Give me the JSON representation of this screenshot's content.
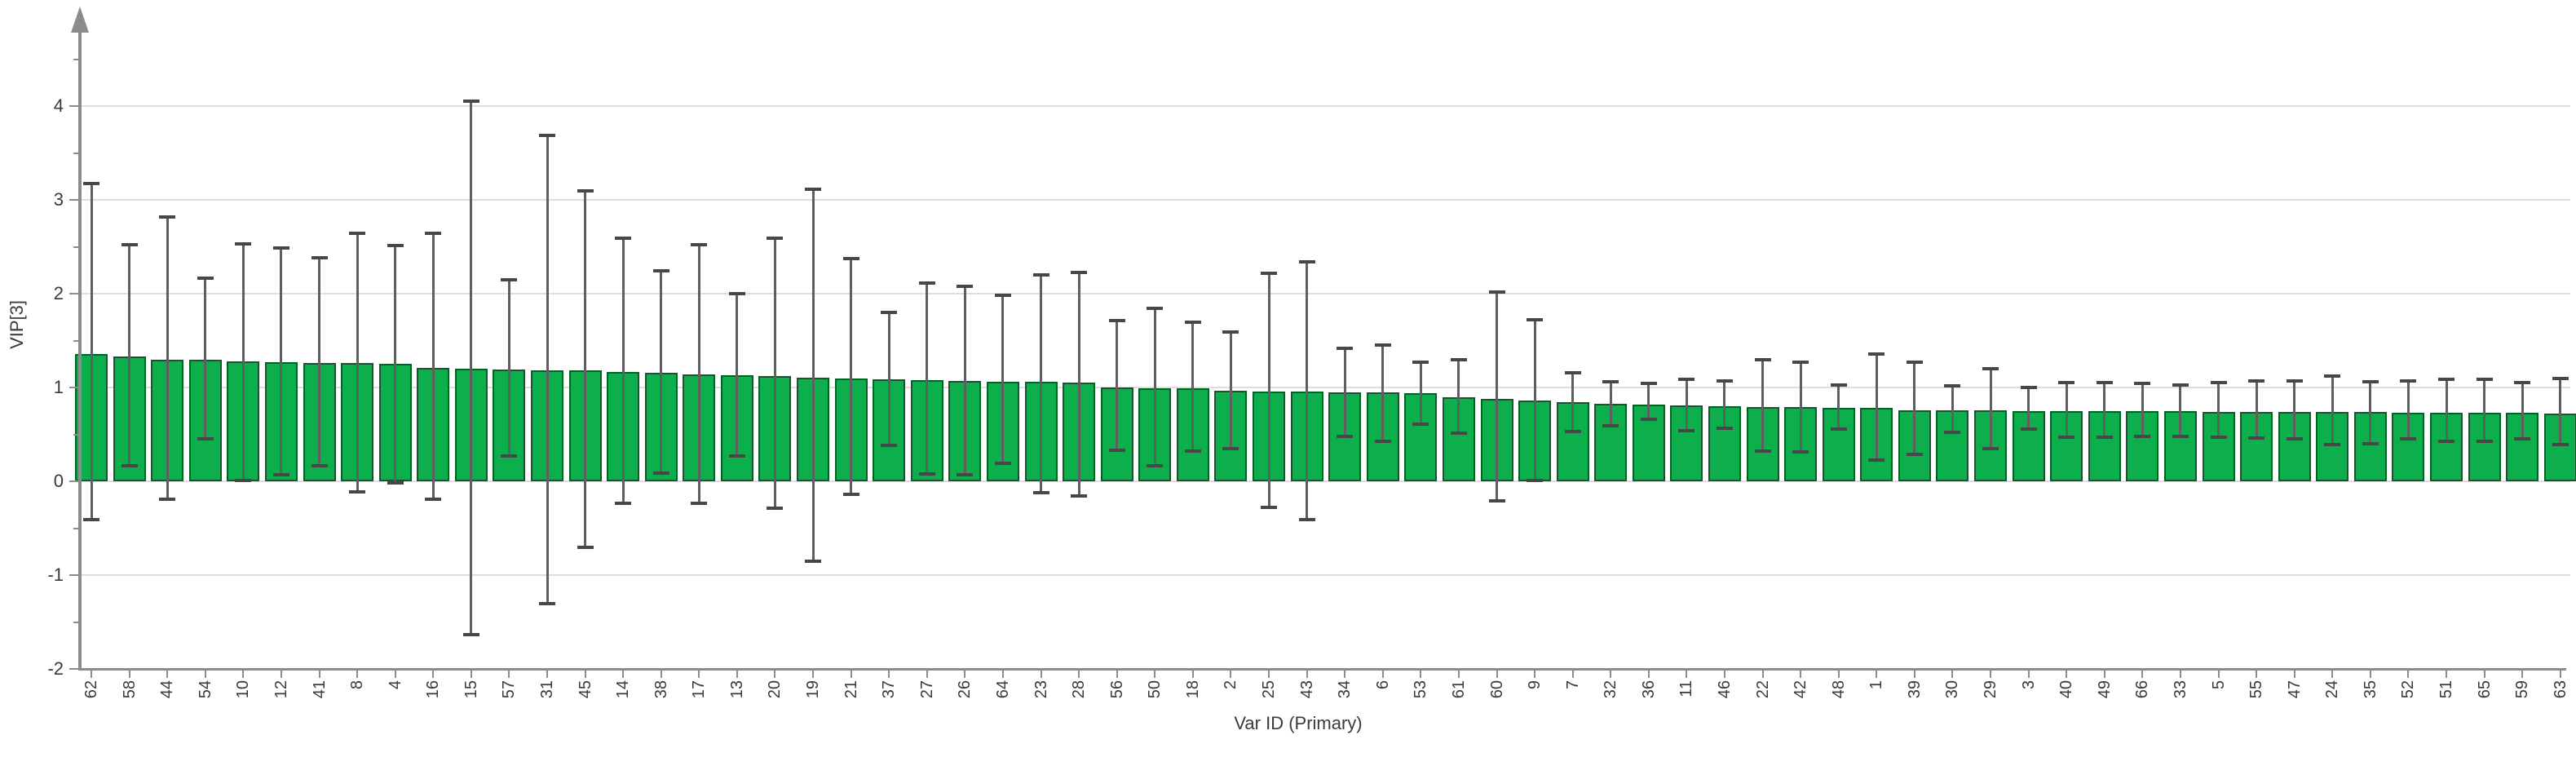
{
  "chart_data": {
    "type": "bar",
    "title": "",
    "xlabel": "Var ID (Primary)",
    "ylabel": "VIP[3]",
    "ylim": [
      -2,
      4.6
    ],
    "yticks": [
      -2,
      -1,
      0,
      1,
      2,
      3,
      4
    ],
    "yticks_minor": [
      -1.5,
      -0.5,
      0.5,
      1.5,
      2.5,
      3.5,
      4.5
    ],
    "grid": true,
    "legend_position": "none",
    "categories": [
      "62",
      "58",
      "44",
      "54",
      "10",
      "12",
      "41",
      "8",
      "4",
      "16",
      "15",
      "57",
      "31",
      "45",
      "14",
      "38",
      "17",
      "13",
      "20",
      "19",
      "21",
      "37",
      "27",
      "26",
      "64",
      "23",
      "28",
      "56",
      "50",
      "18",
      "2",
      "25",
      "43",
      "34",
      "6",
      "53",
      "61",
      "60",
      "9",
      "7",
      "32",
      "36",
      "11",
      "46",
      "22",
      "42",
      "48",
      "1",
      "39",
      "30",
      "29",
      "3",
      "40",
      "49",
      "66",
      "33",
      "5",
      "55",
      "47",
      "24",
      "35",
      "52",
      "51",
      "65",
      "59",
      "63"
    ],
    "series": [
      {
        "name": "VIP[3]",
        "values": [
          1.36,
          1.33,
          1.3,
          1.295,
          1.28,
          1.27,
          1.265,
          1.26,
          1.25,
          1.21,
          1.2,
          1.19,
          1.185,
          1.18,
          1.17,
          1.16,
          1.14,
          1.13,
          1.12,
          1.105,
          1.1,
          1.085,
          1.08,
          1.07,
          1.065,
          1.06,
          1.055,
          1.0,
          0.995,
          0.99,
          0.965,
          0.96,
          0.955,
          0.95,
          0.945,
          0.94,
          0.9,
          0.88,
          0.86,
          0.845,
          0.83,
          0.82,
          0.805,
          0.8,
          0.795,
          0.79,
          0.785,
          0.78,
          0.76,
          0.755,
          0.755,
          0.75,
          0.75,
          0.748,
          0.746,
          0.744,
          0.742,
          0.74,
          0.74,
          0.738,
          0.736,
          0.734,
          0.732,
          0.73,
          0.728,
          0.726
        ],
        "error_low": [
          -0.41,
          0.17,
          -0.19,
          0.45,
          0.01,
          0.07,
          0.17,
          -0.11,
          -0.02,
          -0.19,
          -1.63,
          0.27,
          -1.3,
          -0.7,
          -0.23,
          0.09,
          -0.23,
          0.27,
          -0.29,
          -0.85,
          -0.14,
          0.38,
          0.08,
          0.07,
          0.19,
          -0.12,
          -0.16,
          0.33,
          0.17,
          0.32,
          0.35,
          -0.28,
          -0.41,
          0.48,
          0.43,
          0.61,
          0.51,
          -0.21,
          0.01,
          0.53,
          0.59,
          0.66,
          0.54,
          0.57,
          0.32,
          0.31,
          0.56,
          0.23,
          0.29,
          0.52,
          0.35,
          0.56,
          0.47,
          0.47,
          0.48,
          0.48,
          0.47,
          0.465,
          0.45,
          0.39,
          0.4,
          0.45,
          0.43,
          0.43,
          0.455,
          0.39
        ],
        "error_high": [
          3.17,
          2.52,
          2.82,
          2.17,
          2.53,
          2.49,
          2.38,
          2.64,
          2.51,
          2.64,
          4.05,
          2.15,
          3.69,
          3.1,
          2.59,
          2.24,
          2.52,
          2.0,
          2.59,
          3.11,
          2.37,
          1.8,
          2.11,
          2.08,
          1.98,
          2.2,
          2.23,
          1.71,
          1.84,
          1.7,
          1.59,
          2.22,
          2.34,
          1.42,
          1.45,
          1.27,
          1.3,
          2.02,
          1.72,
          1.16,
          1.06,
          1.04,
          1.09,
          1.07,
          1.3,
          1.27,
          1.03,
          1.36,
          1.27,
          1.02,
          1.2,
          1.0,
          1.05,
          1.05,
          1.04,
          1.03,
          1.05,
          1.07,
          1.07,
          1.12,
          1.065,
          1.07,
          1.085,
          1.085,
          1.05,
          1.1
        ]
      }
    ],
    "colors": {
      "bar_fill": "#0daf4c",
      "bar_border": "#0a5c29",
      "error_line": "#5f5f5f",
      "error_cap": "#474747",
      "gridline": "#dedede",
      "axis": "#8c8c8c",
      "text": "#3a3a3a"
    }
  }
}
